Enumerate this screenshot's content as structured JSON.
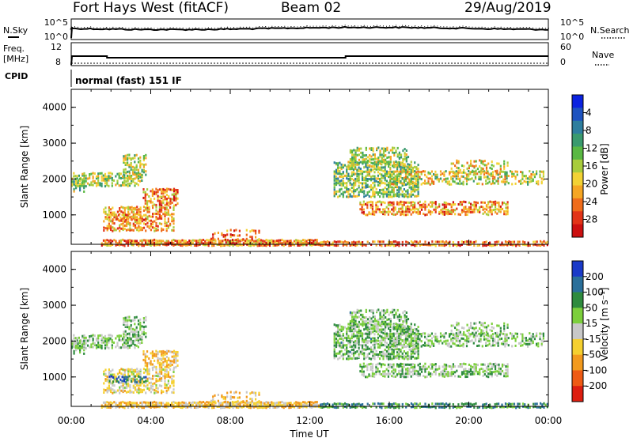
{
  "header": {
    "radar": "Fort Hays West (fitACF)",
    "beam": "Beam 02",
    "date": "29/Aug/2019"
  },
  "status_panel": {
    "left_top_label": "N.Sky",
    "right_top_label": "N.Search",
    "left_mid_label_1": "Freq.",
    "left_mid_label_2": "[MHz]",
    "right_mid_label": "Nave",
    "cpid_label": "CPID",
    "cpid_text": "normal (fast) 151 IF",
    "sky_ticks": [
      "10^5",
      "10^0"
    ],
    "search_ticks": [
      "10^5",
      "10^0"
    ],
    "freq_ticks": [
      "12",
      "8"
    ],
    "nave_ticks": [
      "60",
      "0"
    ]
  },
  "chart_data": [
    {
      "type": "heatmap",
      "name": "power",
      "xlabel": "Time UT",
      "ylabel": "Slant Range [km]",
      "x_ticks": [
        "00:00",
        "04:00",
        "08:00",
        "12:00",
        "16:00",
        "20:00",
        "00:00"
      ],
      "x_range_hours": [
        0,
        24
      ],
      "y_range": [
        180,
        4500
      ],
      "y_ticks": [
        1000,
        2000,
        3000,
        4000
      ],
      "colorbar": {
        "label": "Power [dB]",
        "ticks": [
          "4",
          "8",
          "12",
          "16",
          "20",
          "24",
          "28"
        ],
        "colors": [
          "#0a22e0",
          "#1e53c0",
          "#2e7e9e",
          "#3a9a6e",
          "#5ab843",
          "#a8cc3c",
          "#f2d234",
          "#f5a623",
          "#ef6c1b",
          "#e23418",
          "#cc1010"
        ]
      }
    },
    {
      "type": "heatmap",
      "name": "velocity",
      "xlabel": "Time UT",
      "ylabel": "Slant Range [km]",
      "x_ticks": [
        "00:00",
        "04:00",
        "08:00",
        "12:00",
        "16:00",
        "20:00",
        "00:00"
      ],
      "x_range_hours": [
        0,
        24
      ],
      "y_range": [
        180,
        4500
      ],
      "y_ticks": [
        1000,
        2000,
        3000,
        4000
      ],
      "colorbar": {
        "label": "Velocity [m s⁻¹]",
        "ticks": [
          "200",
          "100",
          "50",
          "15",
          "-15",
          "-50",
          "-100",
          "-200"
        ],
        "colors": [
          "#1a3ac8",
          "#2a6f9a",
          "#2e8b3e",
          "#7ccf3c",
          "#c8c8c8",
          "#f5d030",
          "#f29a1e",
          "#ee5a14",
          "#dd1e10"
        ]
      }
    }
  ]
}
